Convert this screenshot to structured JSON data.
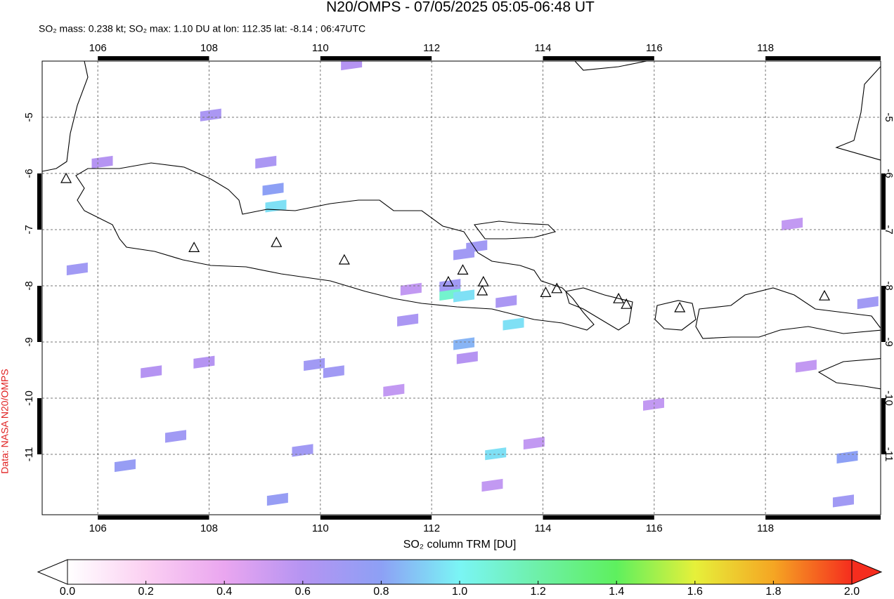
{
  "chart_data": {
    "type": "map",
    "title": "N20/OMPS - 07/05/2025 05:05-06:48 UT",
    "subtitle": "SO₂ mass: 0.238 kt; SO₂ max: 1.10 DU at lon: 112.35 lat: -8.14 ; 06:47UTC",
    "source_label": "Data: NASA N20/OMPS",
    "colorbar_label": "SO₂ column TRM [DU]",
    "xlim": [
      105.0,
      120.07
    ],
    "ylim": [
      -12.075,
      -4.0
    ],
    "xticks": [
      106,
      108,
      110,
      112,
      114,
      116,
      118
    ],
    "yticks": [
      -5,
      -6,
      -7,
      -8,
      -9,
      -10,
      -11
    ],
    "grid": true,
    "so2_pixels": {
      "lon": [
        112.33,
        112.58,
        112.33,
        113.47,
        113.15,
        109.2,
        109.15,
        112.58,
        112.81,
        108.03,
        109.02,
        109.89,
        110.24,
        111.57,
        112.64,
        113.34,
        112.58,
        111.63,
        107.4,
        106.49,
        109.23,
        109.68,
        119.47,
        119.4,
        105.63,
        119.84,
        118.48,
        110.56,
        106.08,
        107.91,
        118.73,
        115.99,
        113.09,
        111.32,
        106.96,
        113.84
      ],
      "lat": [
        -8.15,
        -8.18,
        -7.99,
        -8.68,
        -10.99,
        -6.58,
        -6.28,
        -9.03,
        -7.3,
        -4.96,
        -5.8,
        -9.4,
        -9.53,
        -8.61,
        -9.28,
        -8.28,
        -7.43,
        -8.06,
        -10.68,
        -11.2,
        -11.8,
        -10.93,
        -11.05,
        -11.83,
        -7.7,
        -8.3,
        -6.9,
        -4.05,
        -5.8,
        -9.36,
        -9.43,
        -10.11,
        -11.55,
        -9.86,
        -9.53,
        -10.8
      ],
      "values": [
        1.1,
        0.95,
        0.7,
        0.95,
        0.95,
        0.95,
        0.8,
        0.85,
        0.7,
        0.65,
        0.65,
        0.7,
        0.7,
        0.65,
        0.6,
        0.65,
        0.7,
        0.55,
        0.7,
        0.75,
        0.75,
        0.7,
        0.8,
        0.7,
        0.7,
        0.7,
        0.55,
        0.6,
        0.6,
        0.6,
        0.55,
        0.55,
        0.55,
        0.55,
        0.6,
        0.55
      ]
    },
    "volcanoes": {
      "lon": [
        107.73,
        109.21,
        110.43,
        112.3,
        112.56,
        112.93,
        112.91,
        114.05,
        114.25,
        115.36,
        115.5,
        116.46,
        119.06,
        105.43
      ],
      "lat": [
        -7.33,
        -7.24,
        -7.55,
        -7.94,
        -7.73,
        -7.94,
        -8.1,
        -8.13,
        -8.06,
        -8.24,
        -8.34,
        -8.4,
        -8.19,
        -6.1
      ]
    },
    "colorbar": {
      "lim": [
        0,
        2
      ],
      "ticks": [
        {
          "value": 0,
          "label": "0.0"
        },
        0.2,
        0.4,
        0.6,
        0.8,
        {
          "value": 1,
          "label": "1.0"
        },
        1.2,
        1.4,
        1.6,
        1.8,
        {
          "value": 2,
          "label": "2.0"
        }
      ],
      "colorscale": [
        [
          0,
          "#ffffff"
        ],
        [
          0.2,
          "#fbd0f2"
        ],
        [
          0.4,
          "#eaa6f0"
        ],
        [
          0.6,
          "#b594f2"
        ],
        [
          0.8,
          "#8da0f5"
        ],
        [
          1.0,
          "#7af5f5"
        ],
        [
          1.2,
          "#6ef0a8"
        ],
        [
          1.4,
          "#5ef05e"
        ],
        [
          1.6,
          "#e6f03a"
        ],
        [
          1.8,
          "#f5a623"
        ],
        [
          2.0,
          "#f52d1e"
        ]
      ]
    }
  }
}
